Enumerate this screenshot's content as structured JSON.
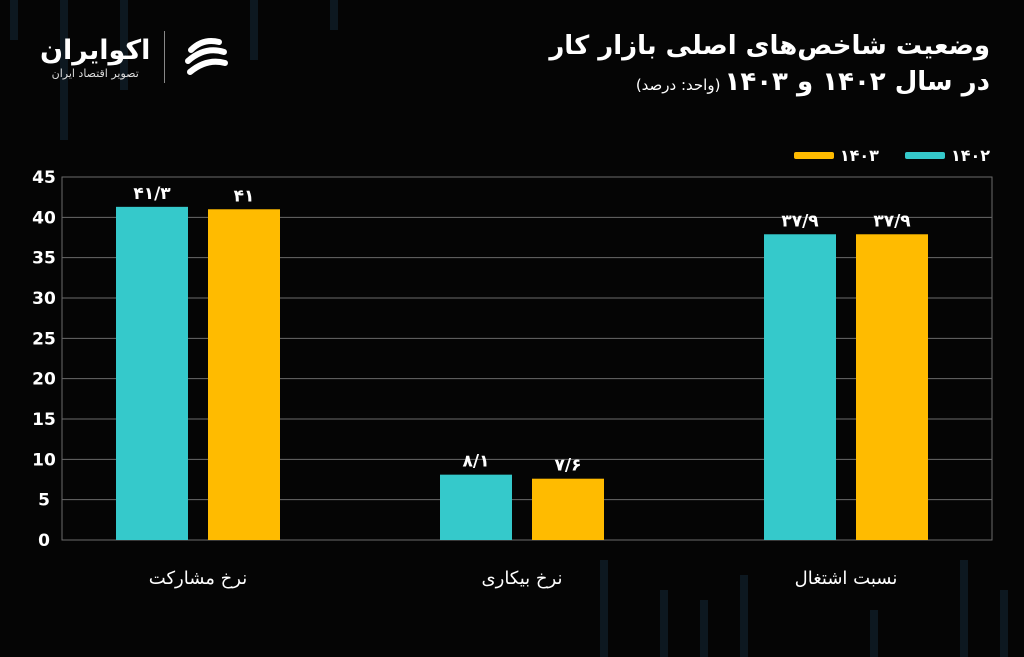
{
  "header": {
    "title_line1": "وضعیت شاخص‌های اصلی بازار کار",
    "title_line2": "در سال ۱۴۰۲ و ۱۴۰۳",
    "unit": "(واحد: درصد)"
  },
  "logo": {
    "name": "اکوایران",
    "subtitle": "تصویر اقتصاد ایران",
    "icon": "ecoiran-logo-icon"
  },
  "colors": {
    "background": "#050505",
    "s1402": "#35C9CB",
    "s1403": "#FFBB00",
    "grid": "#6a6a6a"
  },
  "chart_data": {
    "type": "bar",
    "categories": [
      "نرخ مشارکت",
      "نرخ بیکاری",
      "نسبت اشتغال"
    ],
    "series": [
      {
        "name": "۱۴۰۲",
        "values": [
          41.3,
          8.1,
          37.9
        ],
        "labels": [
          "۴۱/۳",
          "۸/۱",
          "۳۷/۹"
        ]
      },
      {
        "name": "۱۴۰۳",
        "values": [
          41,
          7.6,
          37.9
        ],
        "labels": [
          "۴۱",
          "۷/۶",
          "۳۷/۹"
        ]
      }
    ],
    "ylim": [
      0,
      45
    ],
    "yticks": [
      0,
      5,
      10,
      15,
      20,
      25,
      30,
      35,
      40,
      45
    ],
    "ytick_labels": [
      "0",
      "5",
      "10",
      "15",
      "20",
      "25",
      "30",
      "35",
      "40",
      "45"
    ],
    "grid": true,
    "legend": "top-right"
  }
}
